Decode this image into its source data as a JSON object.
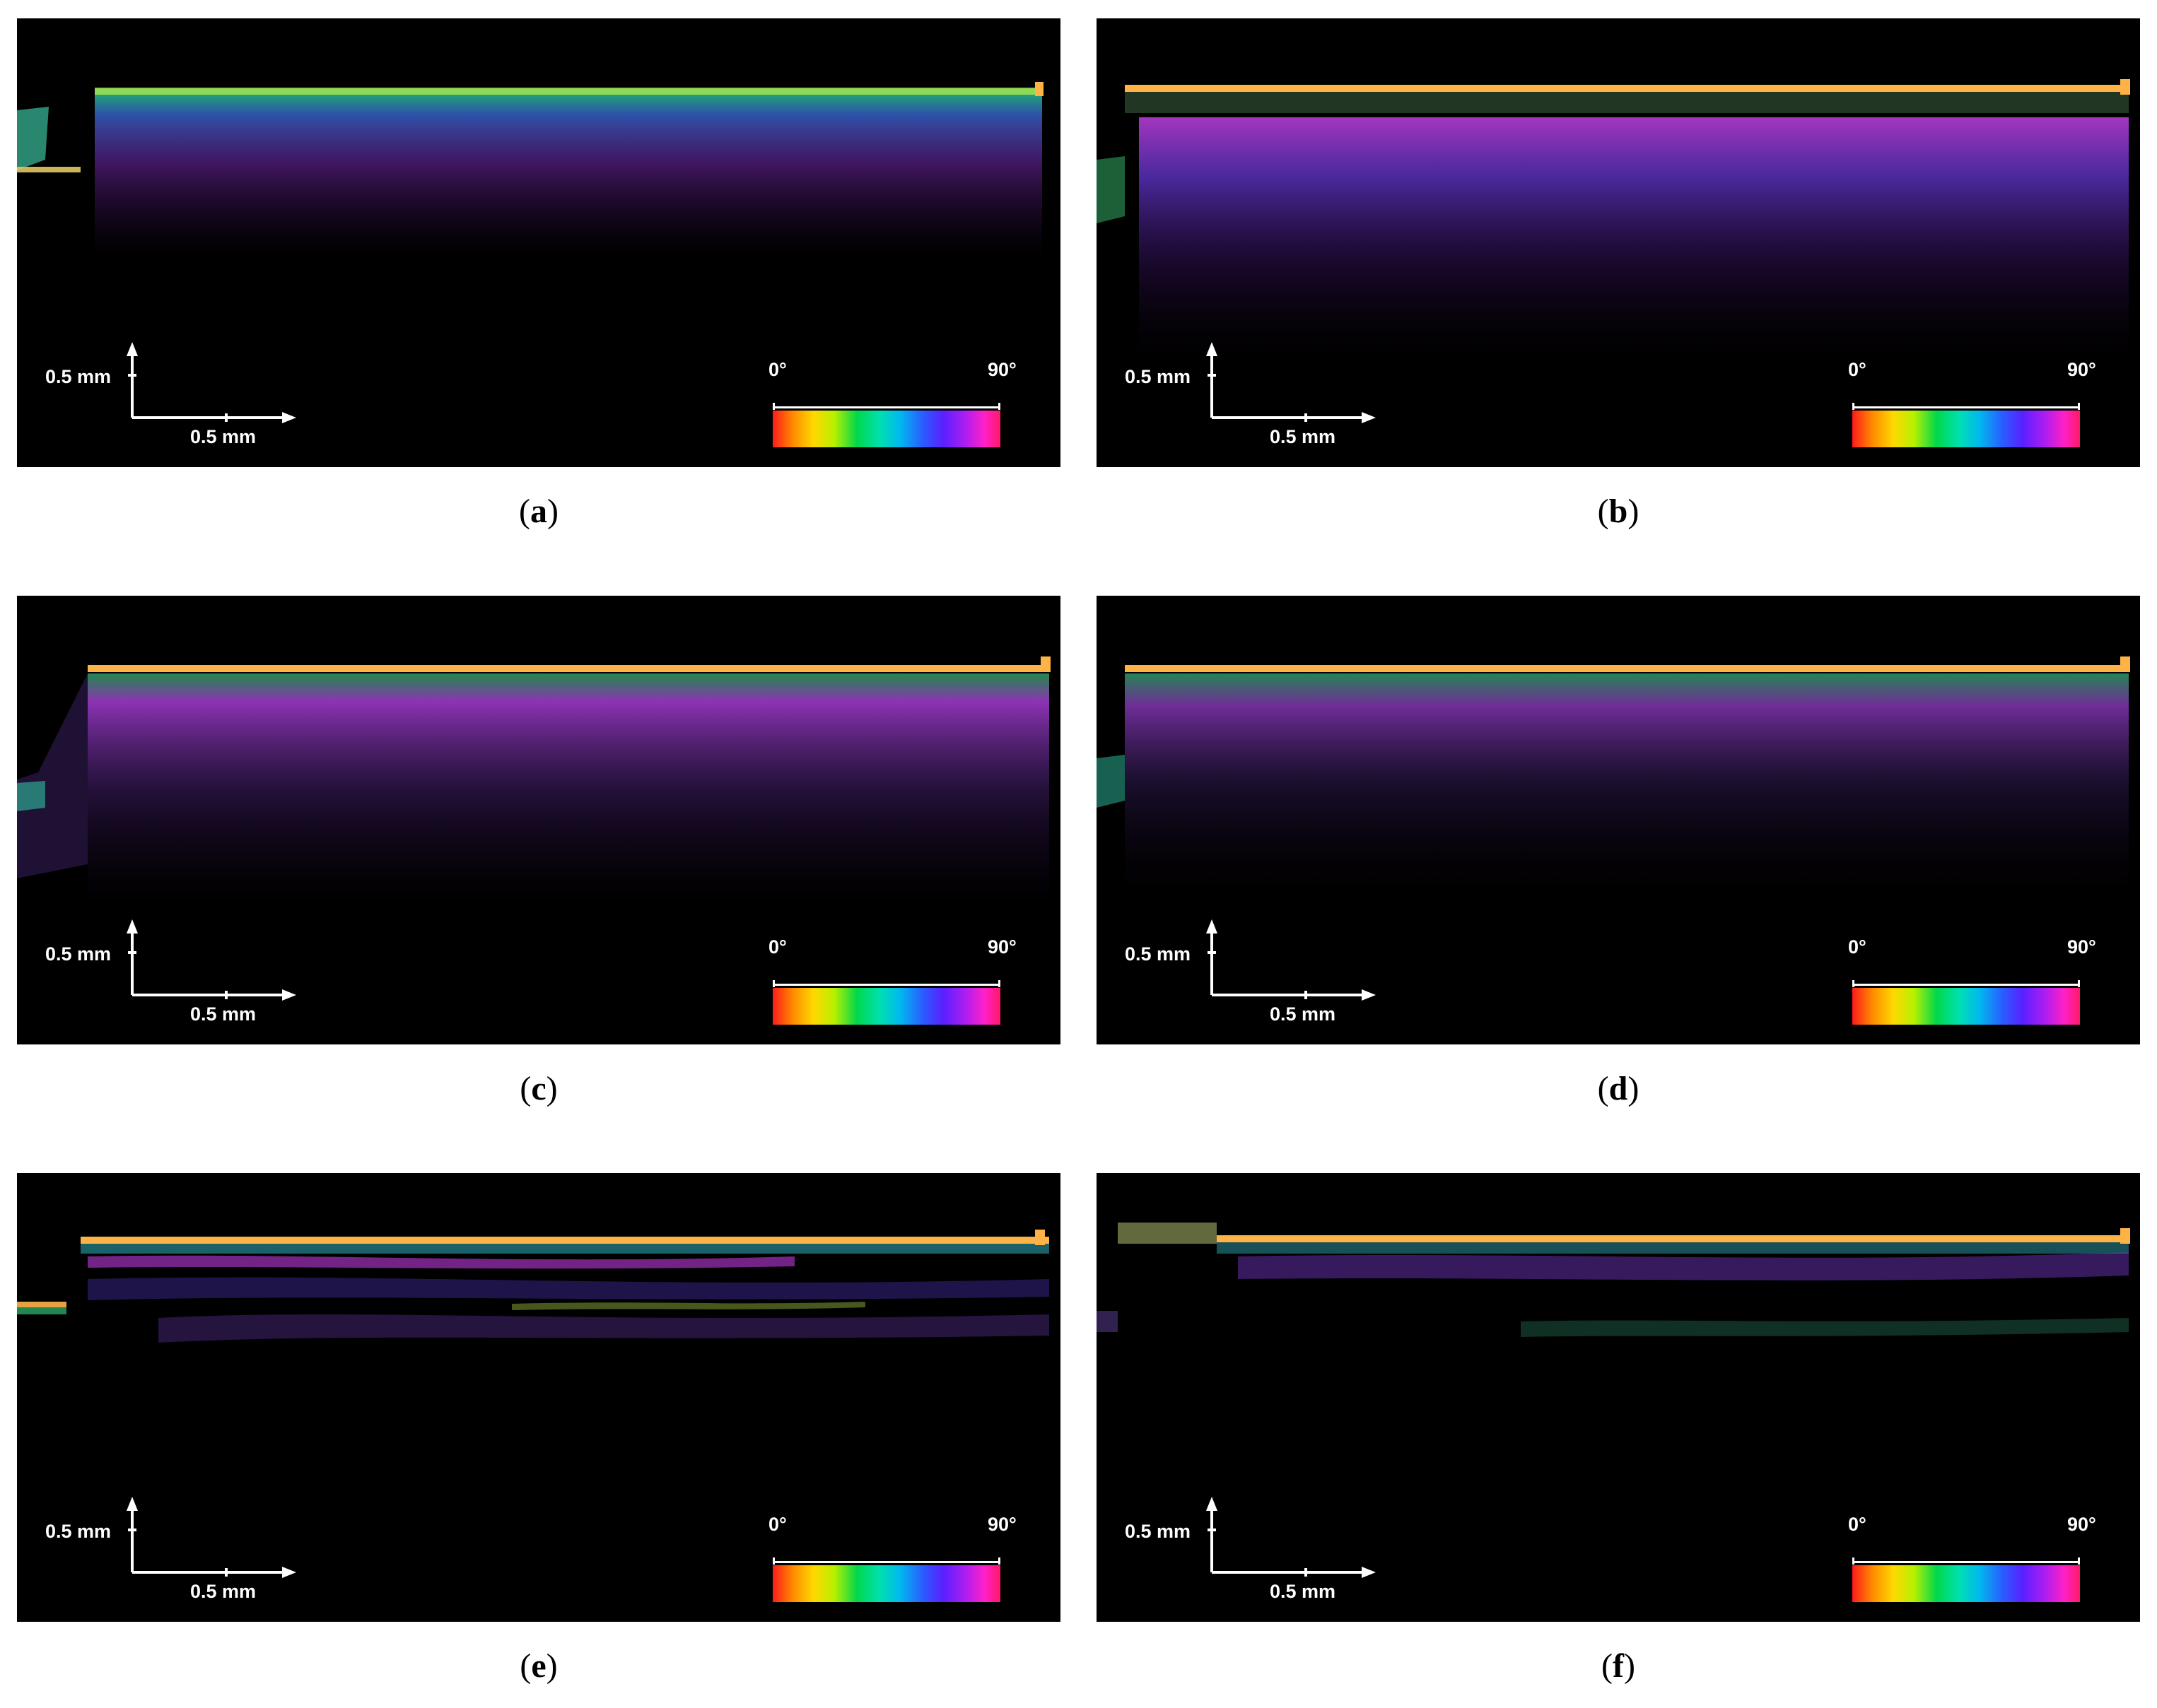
{
  "panels": [
    {
      "id": "a",
      "caption_letter": "a",
      "scale_vertical": "0.5 mm",
      "scale_horizontal": "0.5 mm",
      "colorbar_min": "0°",
      "colorbar_max": "90°"
    },
    {
      "id": "b",
      "caption_letter": "b",
      "scale_vertical": "0.5 mm",
      "scale_horizontal": "0.5 mm",
      "colorbar_min": "0°",
      "colorbar_max": "90°"
    },
    {
      "id": "c",
      "caption_letter": "c",
      "scale_vertical": "0.5 mm",
      "scale_horizontal": "0.5 mm",
      "colorbar_min": "0°",
      "colorbar_max": "90°"
    },
    {
      "id": "d",
      "caption_letter": "d",
      "scale_vertical": "0.5 mm",
      "scale_horizontal": "0.5 mm",
      "colorbar_min": "0°",
      "colorbar_max": "90°"
    },
    {
      "id": "e",
      "caption_letter": "e",
      "scale_vertical": "0.5 mm",
      "scale_horizontal": "0.5 mm",
      "colorbar_min": "0°",
      "colorbar_max": "90°"
    },
    {
      "id": "f",
      "caption_letter": "f",
      "scale_vertical": "0.5 mm",
      "scale_horizontal": "0.5 mm",
      "colorbar_min": "0°",
      "colorbar_max": "90°"
    }
  ],
  "colors": {
    "surface_band": "#ffb347",
    "background": "#000000",
    "caption_text": "#000000"
  }
}
